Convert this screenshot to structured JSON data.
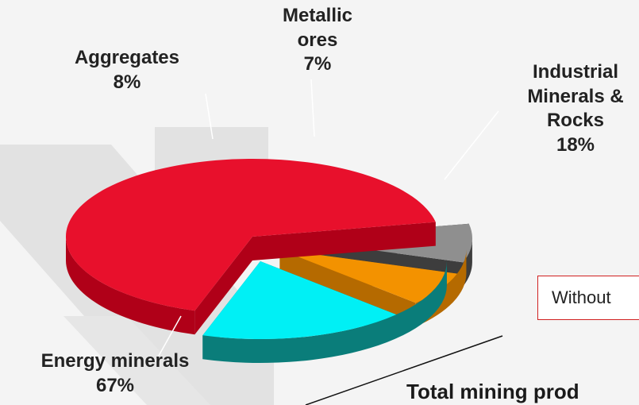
{
  "chart_data": {
    "type": "pie",
    "style": "3d-exploded",
    "slices": [
      {
        "label": "Energy minerals",
        "lines": [
          "Energy minerals"
        ],
        "value": 67,
        "value_label": "67%",
        "color": "#e8102c",
        "side_color": "#b00018"
      },
      {
        "label": "Aggregates",
        "lines": [
          "Aggregates"
        ],
        "value": 8,
        "value_label": "8%",
        "color": "#8f8f8f",
        "side_color": "#3d3d3d"
      },
      {
        "label": "Metallic ores",
        "lines": [
          "Metallic",
          "ores"
        ],
        "value": 7,
        "value_label": "7%",
        "color": "#f39200",
        "side_color": "#b56a00"
      },
      {
        "label": "Industrial Minerals & Rocks",
        "lines": [
          "Industrial",
          "Minerals &",
          "Rocks"
        ],
        "value": 18,
        "value_label": "18%",
        "color": "#00f0f5",
        "side_color": "#0a7d7a"
      }
    ]
  },
  "note": {
    "text": "Without"
  },
  "bottom_text": "Total mining prod"
}
